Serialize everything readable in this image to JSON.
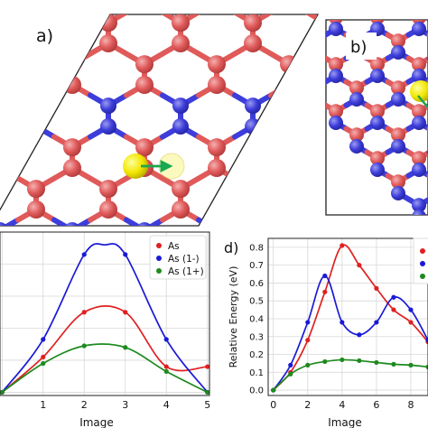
{
  "panels": {
    "a": {
      "label": "a)"
    },
    "b": {
      "label": "b)"
    },
    "c": {
      "legend": [
        "As",
        "As (1-)",
        "As (1+)"
      ],
      "xlabel": "Image",
      "x_ticks": [
        "1",
        "2",
        "3",
        "4",
        "5"
      ]
    },
    "d": {
      "label": "d)",
      "ylabel": "Relative Energy (eV)",
      "xlabel": "Image",
      "x_ticks": [
        "0",
        "2",
        "4",
        "6",
        "8"
      ],
      "y_ticks": [
        "0.0",
        "0.1",
        "0.2",
        "0.3",
        "0.4",
        "0.5",
        "0.6",
        "0.7",
        "0.8"
      ]
    }
  },
  "colors": {
    "atom_red": "#e05a5a",
    "atom_blue": "#3d3ddb",
    "dopant_yellow": "#f2e600",
    "arrow_green": "#1aa84f",
    "series_red": "#e02020",
    "series_blue": "#1a1ad6",
    "series_green": "#1e8a1e"
  },
  "chart_data": [
    {
      "panel": "c",
      "type": "line",
      "xlabel": "Image",
      "x_ticks": [
        1,
        2,
        3,
        4,
        5
      ],
      "xlim": [
        0,
        5.05
      ],
      "grid": true,
      "legend": "top-right",
      "series": [
        {
          "name": "As",
          "x": [
            0,
            1,
            2,
            3,
            4,
            5
          ],
          "values": [
            0.0,
            0.22,
            0.5,
            0.5,
            0.16,
            0.16
          ]
        },
        {
          "name": "As (1-)",
          "x": [
            0,
            1,
            2,
            2.5,
            3,
            4,
            5
          ],
          "values": [
            0.0,
            0.33,
            0.86,
            0.92,
            0.86,
            0.33,
            0.0
          ]
        },
        {
          "name": "As (1+)",
          "x": [
            0,
            1,
            2,
            3,
            4,
            5
          ],
          "values": [
            0.0,
            0.18,
            0.29,
            0.28,
            0.13,
            0.0
          ]
        }
      ]
    },
    {
      "panel": "d",
      "type": "line",
      "xlabel": "Image",
      "ylabel": "Relative Energy (eV)",
      "xlim": [
        -0.3,
        9.0
      ],
      "ylim": [
        -0.03,
        0.85
      ],
      "grid": true,
      "series": [
        {
          "name": "",
          "color": "red",
          "x": [
            0,
            1,
            2,
            3,
            4,
            5,
            6,
            7,
            8,
            9
          ],
          "values": [
            0.0,
            0.1,
            0.28,
            0.55,
            0.81,
            0.7,
            0.57,
            0.45,
            0.38,
            0.27
          ]
        },
        {
          "name": "",
          "color": "blue",
          "x": [
            0,
            1,
            2,
            3,
            4,
            5,
            6,
            7,
            8,
            9
          ],
          "values": [
            0.0,
            0.14,
            0.38,
            0.64,
            0.38,
            0.31,
            0.38,
            0.52,
            0.45,
            0.28
          ]
        },
        {
          "name": "",
          "color": "green",
          "x": [
            0,
            1,
            2,
            3,
            4,
            5,
            6,
            7,
            8,
            9
          ],
          "values": [
            0.0,
            0.09,
            0.14,
            0.16,
            0.17,
            0.165,
            0.155,
            0.145,
            0.14,
            0.13
          ]
        }
      ]
    }
  ]
}
